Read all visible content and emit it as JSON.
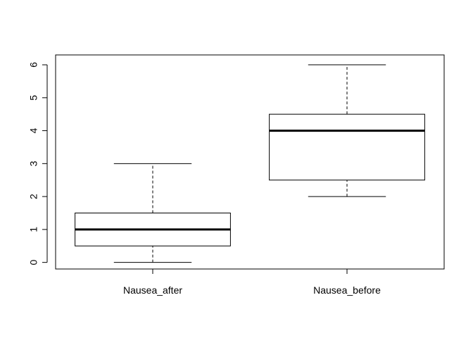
{
  "chart_data": {
    "type": "boxplot",
    "title": "",
    "xlabel": "",
    "ylabel": "",
    "ylim": [
      -0.2,
      6.3
    ],
    "yticks": [
      0,
      1,
      2,
      3,
      4,
      5,
      6
    ],
    "grid": false,
    "categories": [
      "Nausea_after",
      "Nausea_before"
    ],
    "boxes": [
      {
        "category": "Nausea_after",
        "whisker_low": 0,
        "q1": 0.5,
        "median": 1,
        "q3": 1.5,
        "whisker_high": 3
      },
      {
        "category": "Nausea_before",
        "whisker_low": 2,
        "q1": 2.5,
        "median": 4,
        "q3": 4.5,
        "whisker_high": 6
      }
    ]
  }
}
